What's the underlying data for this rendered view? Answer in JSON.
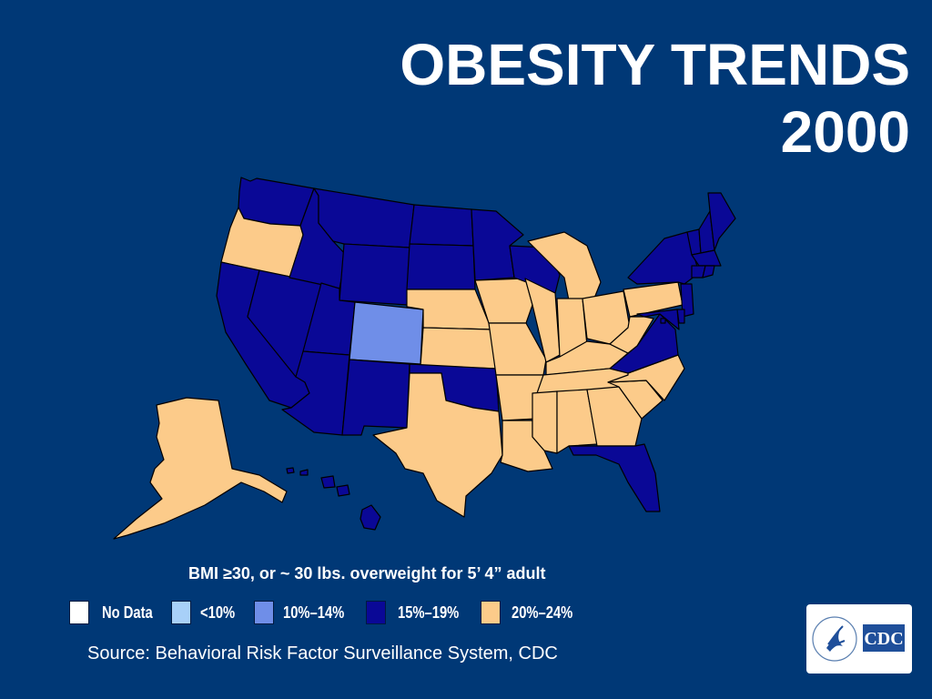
{
  "title": {
    "line1": "OBESITY TRENDS",
    "line2": "2000"
  },
  "subtitle": "BMI ≥30, or ~ 30 lbs. overweight for 5’ 4” adult",
  "legend": [
    {
      "key": "nodata",
      "label": "No Data",
      "color": "#ffffff"
    },
    {
      "key": "lt10",
      "label": "<10%",
      "color": "#a8d0f8"
    },
    {
      "key": "c10_14",
      "label": "10%–14%",
      "color": "#6f8ee8"
    },
    {
      "key": "c15_19",
      "label": "15%–19%",
      "color": "#0a0896"
    },
    {
      "key": "c20_24",
      "label": "20%–24%",
      "color": "#fccb8a"
    }
  ],
  "source": "Source: Behavioral Risk Factor Surveillance System, CDC",
  "logo": {
    "text": "CDC",
    "icon": "hhs-eagle-icon"
  },
  "colors": {
    "background": "#003876",
    "border": "#000000"
  },
  "states": {
    "WA": "c15_19",
    "OR": "c20_24",
    "CA": "c15_19",
    "NV": "c15_19",
    "ID": "c15_19",
    "MT": "c15_19",
    "WY": "c15_19",
    "UT": "c15_19",
    "AZ": "c15_19",
    "CO": "c10_14",
    "NM": "c15_19",
    "ND": "c15_19",
    "SD": "c15_19",
    "NE": "c20_24",
    "KS": "c20_24",
    "OK": "c15_19",
    "TX": "c20_24",
    "MN": "c15_19",
    "IA": "c20_24",
    "MO": "c20_24",
    "AR": "c20_24",
    "LA": "c20_24",
    "WI": "c15_19",
    "IL": "c20_24",
    "MI": "c20_24",
    "IN": "c20_24",
    "OH": "c20_24",
    "KY": "c20_24",
    "TN": "c20_24",
    "MS": "c20_24",
    "AL": "c20_24",
    "GA": "c20_24",
    "FL": "c15_19",
    "SC": "c20_24",
    "NC": "c20_24",
    "VA": "c15_19",
    "WV": "c20_24",
    "PA": "c20_24",
    "NY": "c15_19",
    "VT": "c15_19",
    "NH": "c15_19",
    "ME": "c15_19",
    "MA": "c15_19",
    "RI": "c15_19",
    "CT": "c15_19",
    "NJ": "c15_19",
    "DE": "c15_19",
    "MD": "c15_19",
    "DC": "c15_19",
    "AK": "c20_24",
    "HI": "c15_19"
  }
}
